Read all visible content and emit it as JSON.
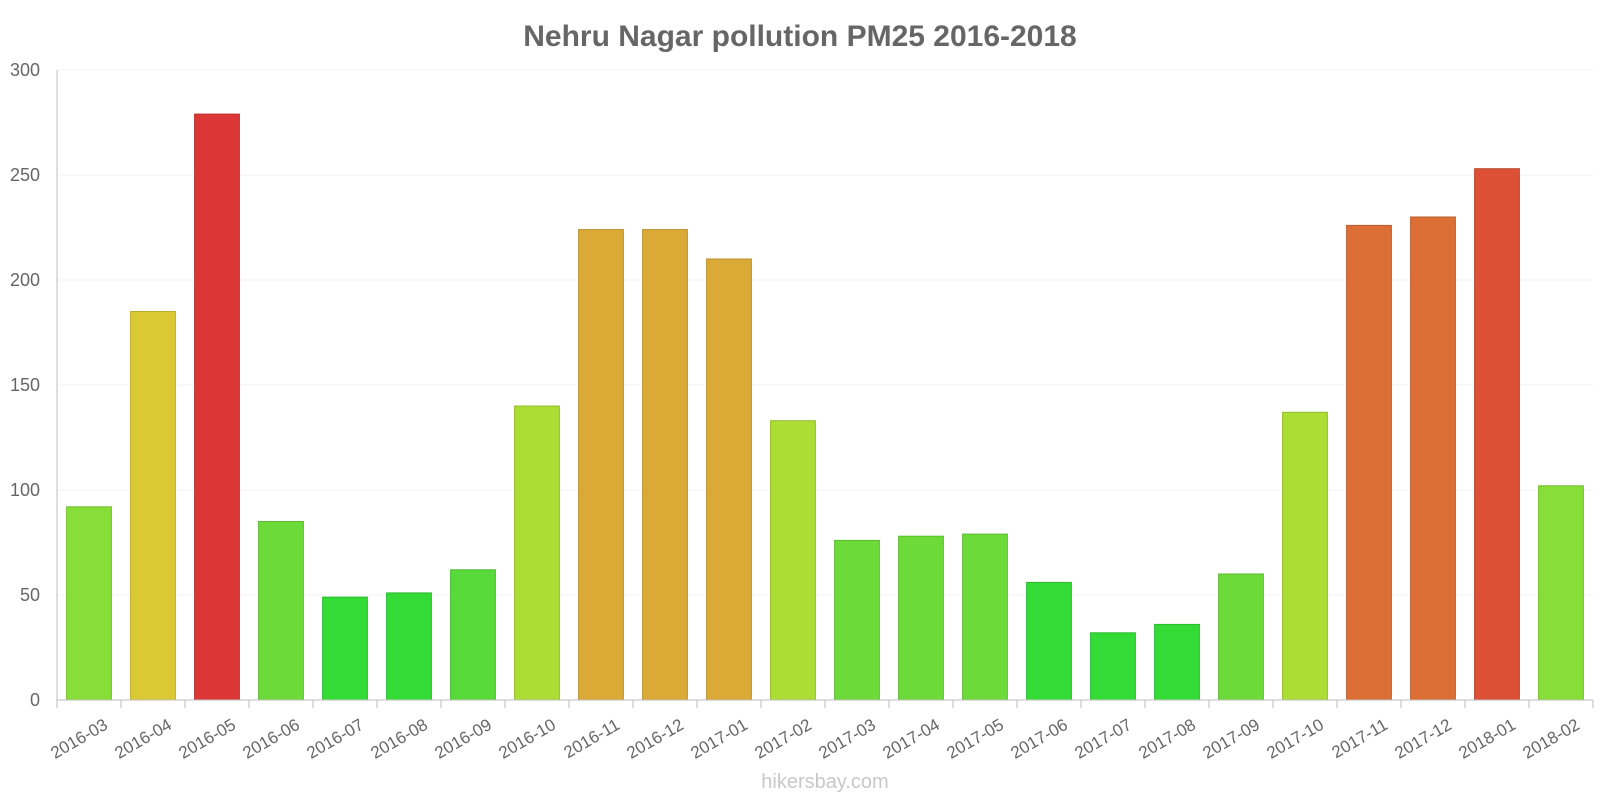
{
  "chart_data": {
    "type": "bar",
    "title": "Nehru Nagar pollution PM25 2016-2018",
    "xlabel": "",
    "ylabel": "",
    "ylim": [
      0,
      300
    ],
    "yticks": [
      "0",
      "50",
      "100",
      "150",
      "200",
      "250",
      "300"
    ],
    "grid": true,
    "legend": "none",
    "categories": [
      "2016-03",
      "2016-04",
      "2016-05",
      "2016-06",
      "2016-07",
      "2016-08",
      "2016-09",
      "2016-10",
      "2016-11",
      "2016-12",
      "2017-01",
      "2017-02",
      "2017-03",
      "2017-04",
      "2017-05",
      "2017-06",
      "2017-07",
      "2017-08",
      "2017-09",
      "2017-10",
      "2017-11",
      "2017-12",
      "2018-01",
      "2018-02"
    ],
    "values": [
      92,
      185,
      279,
      85,
      49,
      51,
      62,
      140,
      224,
      224,
      210,
      133,
      76,
      78,
      79,
      56,
      32,
      36,
      60,
      137,
      226,
      230,
      253,
      102
    ],
    "colors": [
      "#88de38",
      "#dbc933",
      "#dd3636",
      "#6cdb3a",
      "#34db37",
      "#34db37",
      "#58da3a",
      "#acdd35",
      "#dba936",
      "#dba936",
      "#dba936",
      "#acdd35",
      "#6cdb3a",
      "#6cdb3a",
      "#6cdb3a",
      "#34db37",
      "#34db37",
      "#34db37",
      "#6cdb3a",
      "#acdd35",
      "#dc6f35",
      "#dc6f35",
      "#dc5035",
      "#88de38"
    ]
  },
  "footer": {
    "credit": "hikersbay.com"
  }
}
